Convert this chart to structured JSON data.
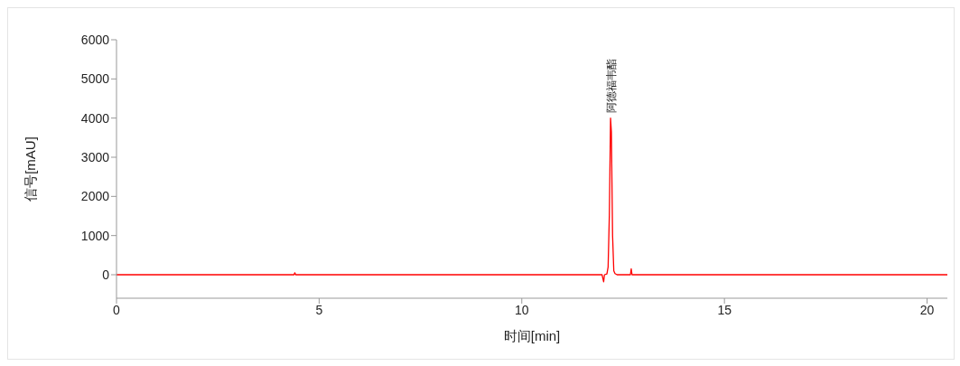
{
  "chart_data": {
    "type": "line",
    "xlabel": "时间[min]",
    "ylabel": "信号[mAU]",
    "x": [
      0,
      4.38,
      4.4,
      4.42,
      11.98,
      12.02,
      12.04,
      12.1,
      12.13,
      12.16,
      12.19,
      12.21,
      12.24,
      12.27,
      12.3,
      12.35,
      12.68,
      12.7,
      12.72,
      20.5
    ],
    "series": [
      {
        "color": "#ff0000",
        "values": [
          0,
          0,
          50,
          0,
          0,
          -180,
          0,
          20,
          200,
          1520,
          4000,
          3650,
          1000,
          100,
          30,
          0,
          0,
          150,
          0,
          0
        ]
      }
    ],
    "xlim": [
      0,
      20.5
    ],
    "xticks": [
      0,
      5,
      10,
      15,
      20
    ],
    "ylim": [
      -600,
      6000
    ],
    "yticks": [
      0,
      1000,
      2000,
      3000,
      4000,
      5000,
      6000
    ],
    "grid": false,
    "legend": false,
    "marker": "none",
    "line_style": "solid",
    "annotations": [
      {
        "text": "阿德福韦酯",
        "x": 12.19,
        "y": 4000
      }
    ]
  }
}
